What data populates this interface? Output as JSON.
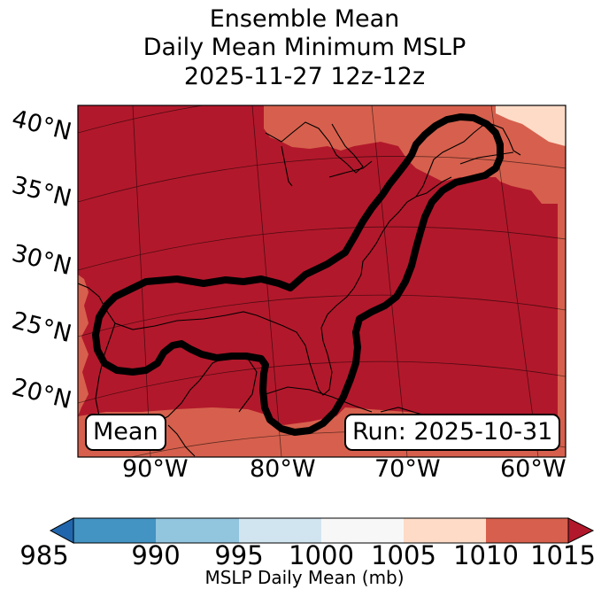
{
  "title": {
    "line1": "Ensemble Mean",
    "line2": "Daily Mean Minimum MSLP",
    "line3": "2025-11-27 12z-12z"
  },
  "map": {
    "latitude_labels": [
      "40°N",
      "35°N",
      "30°N",
      "25°N",
      "20°N"
    ],
    "longitude_labels": [
      "90°W",
      "80°W",
      "70°W",
      "60°W"
    ],
    "mean_label": "Mean",
    "run_label": "Run: 2025-10-31",
    "field_colors": {
      "dominant": "#b2182b",
      "fringe": "#d6604d",
      "light": "#fddbc7",
      "contour": "#000000"
    }
  },
  "colorbar": {
    "ticks": [
      "985",
      "990",
      "995",
      "1000",
      "1005",
      "1010",
      "1015"
    ],
    "colors": [
      "#2166ac",
      "#4393c3",
      "#92c5de",
      "#d1e5f0",
      "#f7f7f7",
      "#fddbc7",
      "#d6604d",
      "#b2182b"
    ],
    "label": "MSLP Daily Mean (mb)"
  }
}
